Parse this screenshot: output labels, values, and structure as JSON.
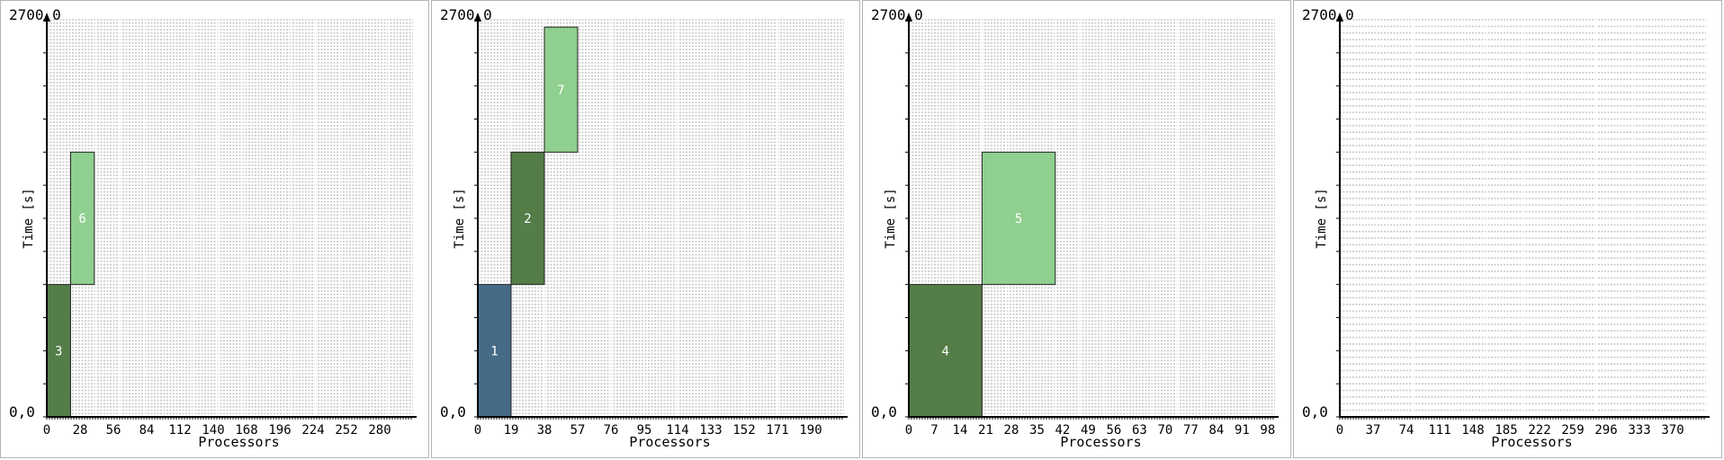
{
  "chart_data": [
    {
      "type": "bar",
      "title": "",
      "xlabel": "Processors",
      "ylabel": "Time [s]",
      "ymax_label": "2700,0",
      "ymin_label": "0,0",
      "xlim": [
        0,
        308
      ],
      "ylim": [
        0,
        2700
      ],
      "x_ticks": [
        "0",
        "28",
        "56",
        "84",
        "112",
        "140",
        "168",
        "196",
        "224",
        "252",
        "280"
      ],
      "grid_rows": 120,
      "grid_cols": 15,
      "jobs": [
        {
          "label": "3",
          "x_start": 0,
          "x_end": 20,
          "y_start": 0,
          "y_end": 900,
          "color": "#547d48"
        },
        {
          "label": "6",
          "x_start": 20,
          "x_end": 40,
          "y_start": 900,
          "y_end": 1800,
          "color": "#8fcf8f"
        }
      ]
    },
    {
      "type": "bar",
      "title": "",
      "xlabel": "Processors",
      "ylabel": "Time [s]",
      "ymax_label": "2700,0",
      "ymin_label": "0,0",
      "xlim": [
        0,
        209
      ],
      "ylim": [
        0,
        2700
      ],
      "x_ticks": [
        "0",
        "19",
        "38",
        "57",
        "76",
        "95",
        "114",
        "133",
        "152",
        "171",
        "190"
      ],
      "grid_rows": 120,
      "grid_cols": 11,
      "jobs": [
        {
          "label": "1",
          "x_start": 0,
          "x_end": 19,
          "y_start": 0,
          "y_end": 900,
          "color": "#456b87"
        },
        {
          "label": "2",
          "x_start": 19,
          "x_end": 38,
          "y_start": 900,
          "y_end": 1800,
          "color": "#547d48"
        },
        {
          "label": "7",
          "x_start": 38,
          "x_end": 57,
          "y_start": 1800,
          "y_end": 2650,
          "color": "#8fcf8f"
        }
      ]
    },
    {
      "type": "bar",
      "title": "",
      "xlabel": "Processors",
      "ylabel": "Time [s]",
      "ymax_label": "2700,0",
      "ymin_label": "0,0",
      "xlim": [
        0,
        100
      ],
      "ylim": [
        0,
        2700
      ],
      "x_ticks": [
        "0",
        "7",
        "14",
        "21",
        "28",
        "35",
        "42",
        "49",
        "56",
        "63",
        "70",
        "77",
        "84",
        "91",
        "98"
      ],
      "grid_rows": 120,
      "grid_cols": 15,
      "jobs": [
        {
          "label": "4",
          "x_start": 0,
          "x_end": 20,
          "y_start": 0,
          "y_end": 900,
          "color": "#547d48"
        },
        {
          "label": "5",
          "x_start": 20,
          "x_end": 40,
          "y_start": 900,
          "y_end": 1800,
          "color": "#8fcf8f"
        }
      ]
    },
    {
      "type": "bar",
      "title": "",
      "xlabel": "Processors",
      "ylabel": "Time [s]",
      "ymax_label": "2700,0",
      "ymin_label": "0,0",
      "xlim": [
        0,
        407
      ],
      "ylim": [
        0,
        2700
      ],
      "x_ticks": [
        "0",
        "37",
        "74",
        "111",
        "148",
        "185",
        "222",
        "259",
        "296",
        "333",
        "370"
      ],
      "grid_rows": 60,
      "grid_cols": 10,
      "jobs": []
    }
  ],
  "colors": {
    "axis": "#000000",
    "grid": "#c8c8c8",
    "job_text": "#ffffff",
    "job_border": "#222222",
    "panel_border": "#b4b4b4"
  }
}
